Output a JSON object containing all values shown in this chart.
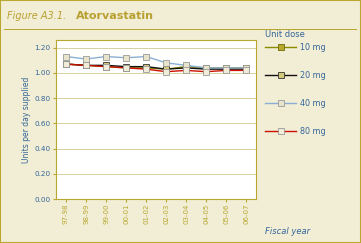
{
  "title_label": "Figure A3.1.",
  "title_name": "Atorvastatin",
  "xlabel": "Fiscal year",
  "ylabel": "Units per day supplied",
  "categories": [
    "97-98",
    "98-99",
    "99-00",
    "00-01",
    "01-02",
    "02-03",
    "03-04",
    "04-05",
    "05-06",
    "06-07"
  ],
  "series": {
    "10 mg": [
      1.07,
      1.06,
      1.05,
      1.04,
      1.04,
      1.03,
      1.05,
      1.04,
      1.04,
      1.04
    ],
    "20 mg": [
      1.07,
      1.06,
      1.06,
      1.05,
      1.05,
      1.03,
      1.04,
      1.03,
      1.03,
      1.03
    ],
    "40 mg": [
      1.13,
      1.11,
      1.13,
      1.12,
      1.13,
      1.08,
      1.06,
      1.04,
      1.04,
      1.04
    ],
    "80 mg": [
      1.07,
      1.06,
      1.05,
      1.04,
      1.03,
      1.01,
      1.02,
      1.01,
      1.02,
      1.02
    ]
  },
  "line_colors": {
    "10 mg": "#8B8B00",
    "20 mg": "#111111",
    "40 mg": "#8BAFD4",
    "80 mg": "#CC1100"
  },
  "marker_facecolors": {
    "10 mg": "#B8A830",
    "20 mg": "#D4C87A",
    "40 mg": "#E8E4CC",
    "80 mg": "#F0ECD8"
  },
  "marker_edgecolors": {
    "10 mg": "#6B6B00",
    "20 mg": "#333333",
    "40 mg": "#999999",
    "80 mg": "#999999"
  },
  "ylim": [
    0.0,
    1.26
  ],
  "yticks": [
    0.0,
    0.2,
    0.4,
    0.6,
    0.8,
    1.0,
    1.2
  ],
  "plot_bg": "#FFFFFF",
  "outer_bg": "#F2EDD5",
  "border_color": "#B8A830",
  "title_color": "#B8A030",
  "axis_label_color": "#336699",
  "tick_label_color": "#336699",
  "legend_title_color": "#336699",
  "legend_label_color": "#336699",
  "grid_color": "#D8D0A0"
}
